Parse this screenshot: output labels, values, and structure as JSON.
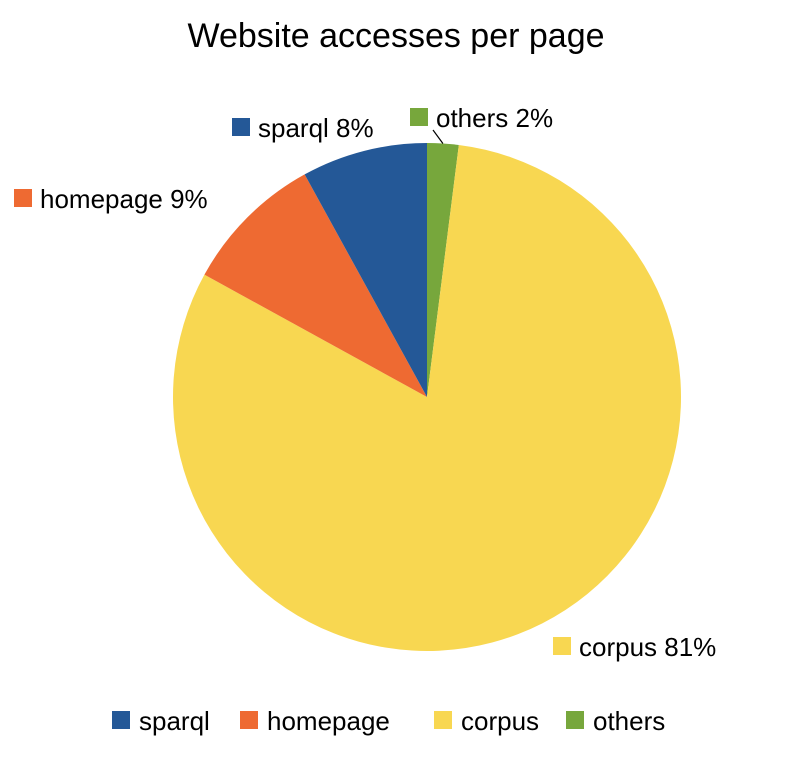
{
  "chart_data": {
    "type": "pie",
    "title": "Website accesses per page",
    "slices": [
      {
        "name": "others",
        "value": 2,
        "color": "#77A73C",
        "label": "others 2%"
      },
      {
        "name": "corpus",
        "value": 81,
        "color": "#F8D751",
        "label": "corpus 81%"
      },
      {
        "name": "homepage",
        "value": 9,
        "color": "#EE6A32",
        "label": "homepage 9%"
      },
      {
        "name": "sparql",
        "value": 8,
        "color": "#245897",
        "label": "sparql 8%"
      }
    ],
    "legend": {
      "position": "bottom",
      "entries": [
        {
          "name": "sparql",
          "color": "#245897"
        },
        {
          "name": "homepage",
          "color": "#EE6A32"
        },
        {
          "name": "corpus",
          "color": "#F8D751"
        },
        {
          "name": "others",
          "color": "#77A73C"
        }
      ]
    }
  }
}
